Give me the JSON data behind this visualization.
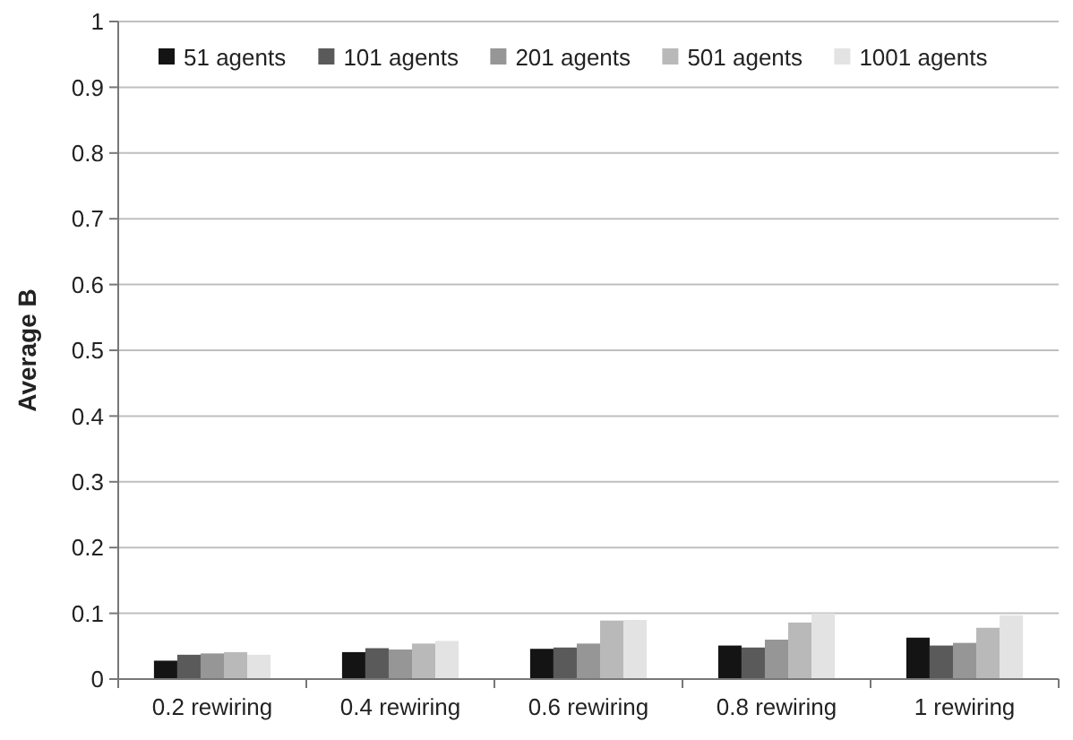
{
  "chart_data": {
    "type": "bar",
    "ylabel": "Average B",
    "categories": [
      "0.2 rewiring",
      "0.4 rewiring",
      "0.6 rewiring",
      "0.8 rewiring",
      "1 rewiring"
    ],
    "series": [
      {
        "name": "51 agents",
        "color": "#141414",
        "values": [
          0.028,
          0.041,
          0.046,
          0.051,
          0.063
        ]
      },
      {
        "name": "101 agents",
        "color": "#5a5a5a",
        "values": [
          0.037,
          0.047,
          0.048,
          0.048,
          0.051
        ]
      },
      {
        "name": "201 agents",
        "color": "#969696",
        "values": [
          0.039,
          0.045,
          0.054,
          0.06,
          0.055
        ]
      },
      {
        "name": "501 agents",
        "color": "#b9b9b9",
        "values": [
          0.041,
          0.054,
          0.089,
          0.086,
          0.078
        ]
      },
      {
        "name": "1001 agents",
        "color": "#e3e3e3",
        "values": [
          0.037,
          0.058,
          0.09,
          0.1,
          0.097
        ]
      }
    ],
    "ylim": [
      0,
      1
    ],
    "yticks": [
      0,
      0.1,
      0.2,
      0.3,
      0.4,
      0.5,
      0.6,
      0.7,
      0.8,
      0.9,
      1
    ],
    "grid": "y",
    "legend": "top"
  }
}
